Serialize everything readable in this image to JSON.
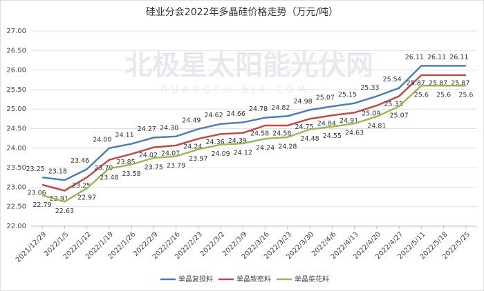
{
  "chart_data": {
    "type": "line",
    "title": "硅业分会2022年多晶硅价格走势（万元/吨）",
    "watermark": "北极星太阳能光伏网",
    "watermark_sub": "GUANGFU.BJX.COM",
    "categories": [
      "2021/12/29",
      "2022/1/5",
      "2022/1/12",
      "2022/1/19",
      "2022/1/26",
      "2022/2/9",
      "2022/2/16",
      "2022/2/23",
      "2022/3/2",
      "2022/3/9",
      "2022/3/16",
      "2022/3/23",
      "2022/3/30",
      "2022/4/6",
      "2022/4/13",
      "2022/4/20",
      "2022/4/27",
      "2022/5/11",
      "2022/5/18",
      "2022/5/25"
    ],
    "series": [
      {
        "name": "单晶复投料",
        "color": "#4a7ebb",
        "values": [
          23.25,
          23.18,
          23.46,
          24,
          24.11,
          24.27,
          24.3,
          24.49,
          24.62,
          24.66,
          24.78,
          24.82,
          24.98,
          25.07,
          25.15,
          25.33,
          25.54,
          26.11,
          26.11,
          26.11
        ],
        "value_labels": [
          "23.25",
          "23.18",
          "23.46",
          "24.00",
          "24.11",
          "24.27",
          "24.30",
          "24.49",
          "24.62",
          "24.66",
          "24.78",
          "24.82",
          "24.98",
          "25.07",
          "25.15",
          "25.33",
          "25.54",
          "26.11",
          "26.11",
          "26.11"
        ]
      },
      {
        "name": "单晶致密料",
        "color": "#be4b48",
        "values": [
          23.06,
          22.91,
          23.25,
          23.7,
          23.85,
          24.02,
          24.07,
          24.24,
          24.36,
          24.39,
          24.58,
          24.58,
          24.75,
          24.84,
          24.91,
          25.09,
          25.33,
          25.87,
          25.87,
          25.87
        ],
        "value_labels": [
          "23.06",
          "22.91",
          "23.25",
          "23.70",
          "23.85",
          "24.02",
          "24.07",
          "24.24",
          "24.36",
          "24.39",
          "24.58",
          "24.58",
          "24.75",
          "24.84",
          "24.91",
          "25.09",
          "25.33",
          "25.87",
          "25.87",
          "25.87"
        ]
      },
      {
        "name": "单晶菜花料",
        "color": "#98b954",
        "values": [
          22.79,
          22.63,
          22.97,
          23.48,
          23.58,
          23.75,
          23.79,
          23.97,
          24.09,
          24.12,
          24.24,
          24.28,
          24.48,
          24.55,
          24.63,
          24.81,
          25.07,
          25.6,
          25.6,
          25.6
        ],
        "value_labels": [
          "22.79",
          "22.63",
          "22.97",
          "23.48",
          "23.58",
          "23.75",
          "23.79",
          "23.97",
          "24.09",
          "24.12",
          "24.24",
          "24.28",
          "24.48",
          "24.55",
          "24.63",
          "24.81",
          "25.07",
          "25.6",
          "25.6",
          "25.6"
        ]
      }
    ],
    "ylim": [
      22,
      27
    ],
    "yticks": [
      {
        "value": 22,
        "label": "22.00"
      },
      {
        "value": 22.5,
        "label": "22.50"
      },
      {
        "value": 23,
        "label": "23.00"
      },
      {
        "value": 23.5,
        "label": "23.50"
      },
      {
        "value": 24,
        "label": "24.00"
      },
      {
        "value": 24.5,
        "label": "24.50"
      },
      {
        "value": 25,
        "label": "25.00"
      },
      {
        "value": 25.5,
        "label": "25.50"
      },
      {
        "value": 26,
        "label": "26.00"
      },
      {
        "value": 26.5,
        "label": "26.50"
      },
      {
        "value": 27,
        "label": "27.00"
      }
    ],
    "grid": true,
    "legend": "bottom"
  }
}
